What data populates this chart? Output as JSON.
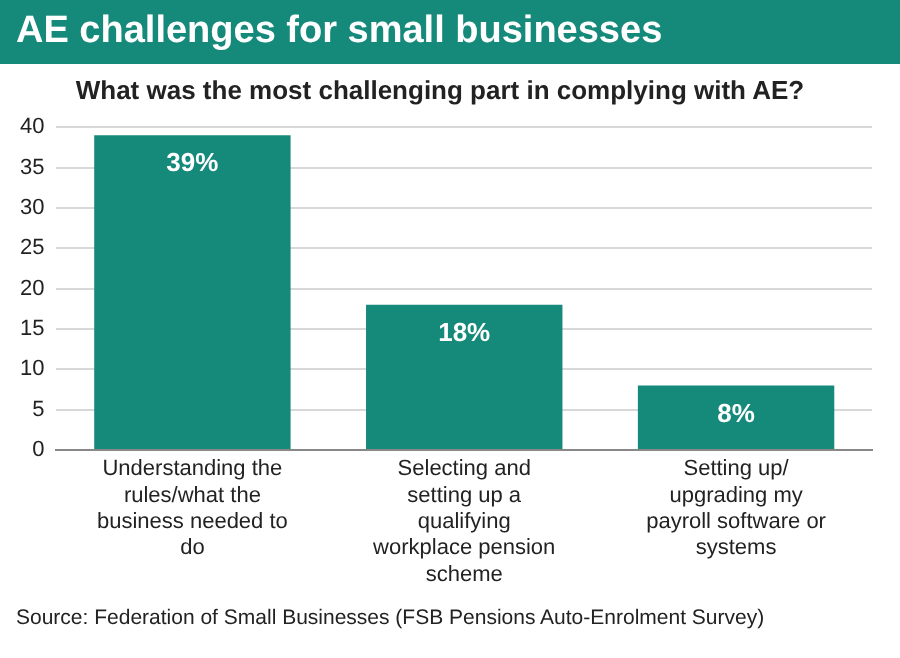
{
  "chart_data": {
    "type": "bar",
    "title": "AE challenges for small businesses",
    "subtitle": "What was the most challenging part in complying with AE?",
    "categories": [
      "Understanding the rules/what the business needed to do",
      "Selecting and setting up a qualifying workplace pension scheme",
      "Setting up/ upgrading my payroll software or systems"
    ],
    "values": [
      39,
      18,
      8
    ],
    "value_labels": [
      "39%",
      "18%",
      "8%"
    ],
    "color": "#15897a",
    "ylim": [
      0,
      40
    ],
    "yticks": [
      0,
      5,
      10,
      15,
      20,
      25,
      30,
      35,
      40
    ],
    "grid": "y",
    "legend": false,
    "annotations": [
      "Source: Federation of Small Businesses (FSB Pensions Auto-Enrolment Survey)"
    ]
  }
}
